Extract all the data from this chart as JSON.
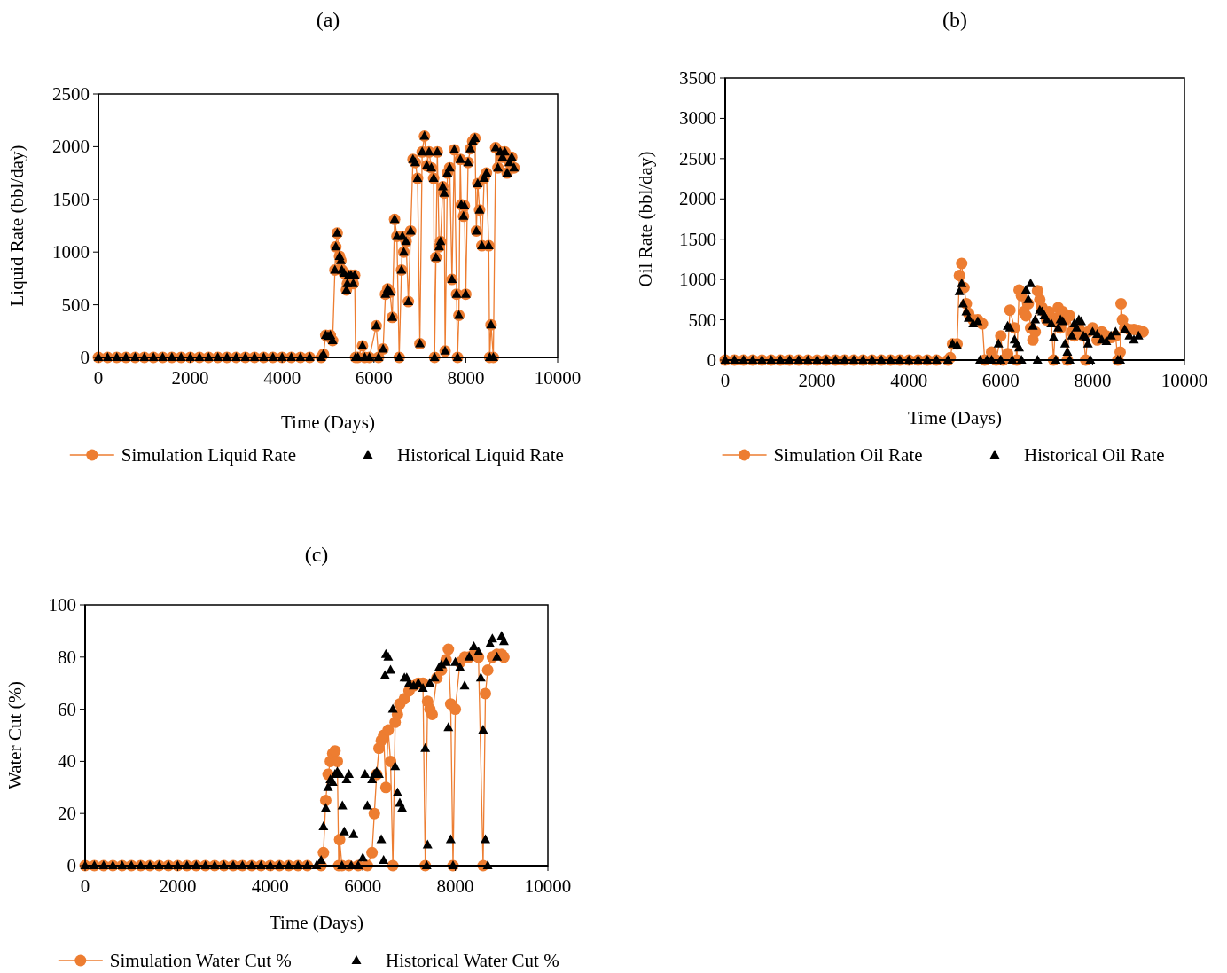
{
  "chart_data": [
    {
      "type": "line",
      "title": "(a)",
      "xlabel": "Time (Days)",
      "ylabel": "Liquid Rate (bbl/day)",
      "xlim": [
        0,
        10000
      ],
      "xticks": [
        0,
        2000,
        4000,
        6000,
        8000,
        10000
      ],
      "ylim": [
        0,
        2500
      ],
      "yticks": [
        0,
        500,
        1000,
        1500,
        2000,
        2500
      ],
      "legend": "bottom",
      "grid": false,
      "series": [
        {
          "name": "Simulation Liquid Rate",
          "type": "line",
          "marker": "circle",
          "color": "#ed7d31",
          "x": [
            0,
            200,
            400,
            600,
            800,
            1000,
            1200,
            1400,
            1600,
            1800,
            2000,
            2200,
            2400,
            2600,
            2800,
            3000,
            3200,
            3400,
            3600,
            3800,
            4000,
            4200,
            4400,
            4600,
            4850,
            4900,
            4950,
            5000,
            5050,
            5100,
            5150,
            5170,
            5200,
            5250,
            5280,
            5300,
            5350,
            5400,
            5420,
            5450,
            5500,
            5550,
            5580,
            5600,
            5650,
            5750,
            5800,
            5900,
            6050,
            6100,
            6200,
            6250,
            6300,
            6350,
            6400,
            6450,
            6500,
            6550,
            6600,
            6620,
            6650,
            6700,
            6750,
            6800,
            6850,
            6900,
            6950,
            7000,
            7050,
            7100,
            7150,
            7200,
            7250,
            7300,
            7320,
            7350,
            7380,
            7420,
            7450,
            7500,
            7530,
            7550,
            7600,
            7650,
            7700,
            7750,
            7800,
            7820,
            7850,
            7880,
            7900,
            7950,
            7970,
            8000,
            8050,
            8100,
            8150,
            8200,
            8230,
            8260,
            8300,
            8350,
            8400,
            8450,
            8500,
            8520,
            8550,
            8600,
            8650,
            8700,
            8750,
            8800,
            8850,
            8900,
            8950,
            9000,
            9050
          ],
          "values": [
            0,
            0,
            0,
            0,
            0,
            0,
            0,
            0,
            0,
            0,
            0,
            0,
            0,
            0,
            0,
            0,
            0,
            0,
            0,
            0,
            0,
            0,
            0,
            0,
            0,
            30,
            210,
            200,
            210,
            160,
            830,
            1050,
            1180,
            960,
            920,
            830,
            800,
            640,
            700,
            780,
            780,
            700,
            780,
            0,
            0,
            110,
            0,
            0,
            300,
            0,
            80,
            600,
            650,
            620,
            380,
            1310,
            1150,
            0,
            830,
            1150,
            1000,
            1100,
            530,
            1200,
            1880,
            1850,
            1700,
            130,
            1950,
            2100,
            1820,
            1950,
            1800,
            1700,
            0,
            950,
            1950,
            1050,
            1100,
            1620,
            1560,
            60,
            1750,
            1800,
            740,
            1970,
            600,
            0,
            400,
            1880,
            1450,
            1340,
            1440,
            600,
            1850,
            1980,
            2050,
            2080,
            1200,
            1650,
            1400,
            1060,
            1700,
            1750,
            1060,
            0,
            310,
            0,
            1990,
            1800,
            1950,
            1900,
            1950,
            1750,
            1850,
            1900,
            1800
          ]
        },
        {
          "name": "Historical Liquid Rate",
          "type": "scatter",
          "marker": "triangle",
          "color": "#000000",
          "x": [
            0,
            200,
            400,
            600,
            800,
            1000,
            1200,
            1400,
            1600,
            1800,
            2000,
            2200,
            2400,
            2600,
            2800,
            3000,
            3200,
            3400,
            3600,
            3800,
            4000,
            4200,
            4400,
            4600,
            4850,
            4900,
            4950,
            5000,
            5050,
            5100,
            5150,
            5170,
            5200,
            5250,
            5280,
            5300,
            5350,
            5400,
            5420,
            5450,
            5500,
            5550,
            5580,
            5600,
            5650,
            5750,
            5800,
            5900,
            6050,
            6100,
            6200,
            6250,
            6300,
            6350,
            6400,
            6450,
            6500,
            6550,
            6600,
            6620,
            6650,
            6700,
            6750,
            6800,
            6850,
            6900,
            6950,
            7000,
            7050,
            7100,
            7150,
            7200,
            7250,
            7300,
            7320,
            7350,
            7380,
            7420,
            7450,
            7500,
            7530,
            7550,
            7600,
            7650,
            7700,
            7750,
            7800,
            7820,
            7850,
            7880,
            7900,
            7950,
            7970,
            8000,
            8050,
            8100,
            8150,
            8200,
            8230,
            8260,
            8300,
            8350,
            8400,
            8450,
            8500,
            8520,
            8550,
            8600,
            8650,
            8700,
            8750,
            8800,
            8850,
            8900,
            8950,
            9000,
            9050
          ],
          "values": [
            0,
            0,
            0,
            0,
            0,
            0,
            0,
            0,
            0,
            0,
            0,
            0,
            0,
            0,
            0,
            0,
            0,
            0,
            0,
            0,
            0,
            0,
            0,
            0,
            0,
            30,
            210,
            200,
            210,
            160,
            830,
            1050,
            1180,
            960,
            920,
            830,
            800,
            640,
            700,
            780,
            780,
            700,
            780,
            0,
            0,
            110,
            0,
            0,
            300,
            0,
            80,
            600,
            650,
            620,
            380,
            1310,
            1150,
            0,
            830,
            1150,
            1000,
            1100,
            530,
            1200,
            1880,
            1850,
            1700,
            130,
            1950,
            2100,
            1820,
            1950,
            1800,
            1700,
            0,
            950,
            1950,
            1050,
            1100,
            1620,
            1560,
            60,
            1750,
            1800,
            740,
            1970,
            600,
            0,
            400,
            1880,
            1450,
            1340,
            1440,
            600,
            1850,
            1980,
            2050,
            2080,
            1200,
            1650,
            1400,
            1060,
            1700,
            1750,
            1060,
            0,
            310,
            0,
            1990,
            1800,
            1950,
            1900,
            1950,
            1750,
            1850,
            1900,
            1800
          ]
        }
      ]
    },
    {
      "type": "line",
      "title": "(b)",
      "xlabel": "Time (Days)",
      "ylabel": "Oil Rate (bbl/day)",
      "xlim": [
        0,
        10000
      ],
      "xticks": [
        0,
        2000,
        4000,
        6000,
        8000,
        10000
      ],
      "ylim": [
        0,
        3500
      ],
      "yticks": [
        0,
        500,
        1000,
        1500,
        2000,
        2500,
        3000,
        3500
      ],
      "legend": "bottom",
      "grid": false,
      "series": [
        {
          "name": "Simulation Oil Rate",
          "type": "line",
          "marker": "circle",
          "color": "#ed7d31",
          "x": [
            0,
            200,
            400,
            600,
            800,
            1000,
            1200,
            1400,
            1600,
            1800,
            2000,
            2200,
            2400,
            2600,
            2800,
            3000,
            3200,
            3400,
            3600,
            3800,
            4000,
            4200,
            4400,
            4600,
            4850,
            4900,
            4950,
            5050,
            5100,
            5150,
            5200,
            5250,
            5300,
            5400,
            5500,
            5600,
            5650,
            5800,
            5900,
            6000,
            6050,
            6150,
            6200,
            6300,
            6350,
            6400,
            6450,
            6500,
            6550,
            6600,
            6650,
            6700,
            6750,
            6800,
            6850,
            6900,
            6950,
            7000,
            7050,
            7100,
            7150,
            7200,
            7250,
            7300,
            7350,
            7400,
            7450,
            7500,
            7550,
            7600,
            7700,
            7800,
            7850,
            7900,
            8000,
            8100,
            8200,
            8300,
            8400,
            8500,
            8550,
            8600,
            8620,
            8650,
            8700,
            8800,
            8900,
            9000,
            9100
          ],
          "values": [
            0,
            0,
            0,
            0,
            0,
            0,
            0,
            0,
            0,
            0,
            0,
            0,
            0,
            0,
            0,
            0,
            0,
            0,
            0,
            0,
            0,
            0,
            0,
            0,
            0,
            30,
            200,
            200,
            1050,
            1200,
            900,
            700,
            580,
            500,
            500,
            450,
            0,
            100,
            0,
            300,
            0,
            80,
            620,
            400,
            0,
            870,
            800,
            600,
            550,
            700,
            400,
            250,
            350,
            860,
            750,
            650,
            600,
            500,
            600,
            480,
            0,
            520,
            650,
            400,
            600,
            500,
            0,
            550,
            350,
            300,
            400,
            300,
            0,
            350,
            400,
            250,
            350,
            300,
            280,
            300,
            0,
            100,
            700,
            500,
            400,
            380,
            380,
            370,
            350
          ]
        },
        {
          "name": "Historical Oil Rate",
          "type": "scatter",
          "marker": "triangle",
          "color": "#000000",
          "x": [
            0,
            200,
            400,
            600,
            800,
            1000,
            1200,
            1400,
            1600,
            1800,
            2000,
            2200,
            2400,
            2600,
            2800,
            3000,
            3200,
            3400,
            3600,
            3800,
            4000,
            4200,
            4400,
            4600,
            4850,
            4950,
            5050,
            5100,
            5150,
            5180,
            5250,
            5300,
            5400,
            5500,
            5550,
            5700,
            5800,
            5950,
            6000,
            6150,
            6200,
            6250,
            6300,
            6350,
            6400,
            6450,
            6550,
            6600,
            6650,
            6700,
            6750,
            6800,
            6850,
            6900,
            6950,
            7000,
            7100,
            7150,
            7200,
            7250,
            7300,
            7350,
            7400,
            7450,
            7500,
            7550,
            7600,
            7650,
            7700,
            7750,
            7800,
            7850,
            7900,
            7950,
            8000,
            8100,
            8200,
            8300,
            8400,
            8500,
            8550,
            8600,
            8700,
            8800,
            8900,
            9000
          ],
          "values": [
            0,
            0,
            0,
            0,
            0,
            0,
            0,
            0,
            0,
            0,
            0,
            0,
            0,
            0,
            0,
            0,
            0,
            0,
            0,
            0,
            0,
            0,
            0,
            0,
            0,
            200,
            180,
            850,
            950,
            700,
            600,
            520,
            450,
            480,
            0,
            0,
            0,
            200,
            0,
            420,
            400,
            0,
            250,
            200,
            150,
            0,
            870,
            750,
            950,
            420,
            500,
            0,
            620,
            600,
            550,
            500,
            450,
            280,
            0,
            400,
            500,
            480,
            200,
            100,
            0,
            300,
            450,
            400,
            500,
            480,
            300,
            280,
            200,
            0,
            350,
            320,
            250,
            230,
            300,
            350,
            0,
            0,
            380,
            300,
            250,
            300
          ]
        }
      ]
    },
    {
      "type": "line",
      "title": "(c)",
      "xlabel": "Time (Days)",
      "ylabel": "Water Cut (%)",
      "xlim": [
        0,
        10000
      ],
      "xticks": [
        0,
        2000,
        4000,
        6000,
        8000,
        10000
      ],
      "ylim": [
        0,
        100
      ],
      "yticks": [
        0,
        20,
        40,
        60,
        80,
        100
      ],
      "legend": "bottom",
      "grid": false,
      "series": [
        {
          "name": "Simulation Water Cut %",
          "type": "line",
          "marker": "circle",
          "color": "#ed7d31",
          "x": [
            0,
            200,
            400,
            600,
            800,
            1000,
            1200,
            1400,
            1600,
            1800,
            2000,
            2200,
            2400,
            2600,
            2800,
            3000,
            3200,
            3400,
            3600,
            3800,
            4000,
            4200,
            4400,
            4600,
            4800,
            5100,
            5150,
            5200,
            5250,
            5300,
            5350,
            5400,
            5450,
            5480,
            5500,
            5550,
            5700,
            5900,
            6100,
            6200,
            6250,
            6300,
            6350,
            6400,
            6450,
            6500,
            6550,
            6600,
            6650,
            6700,
            6750,
            6800,
            6900,
            7000,
            7100,
            7200,
            7300,
            7350,
            7400,
            7450,
            7500,
            7600,
            7700,
            7800,
            7850,
            7900,
            7950,
            8000,
            8100,
            8200,
            8300,
            8400,
            8500,
            8600,
            8650,
            8700,
            8800,
            8900,
            9000,
            9050
          ],
          "values": [
            0,
            0,
            0,
            0,
            0,
            0,
            0,
            0,
            0,
            0,
            0,
            0,
            0,
            0,
            0,
            0,
            0,
            0,
            0,
            0,
            0,
            0,
            0,
            0,
            0,
            0,
            5,
            25,
            35,
            40,
            43,
            44,
            40,
            0,
            10,
            0,
            0,
            0,
            0,
            5,
            20,
            35,
            45,
            48,
            50,
            30,
            52,
            40,
            0,
            55,
            58,
            62,
            64,
            67,
            69,
            70,
            70,
            0,
            63,
            60,
            58,
            72,
            75,
            79,
            83,
            62,
            0,
            60,
            78,
            80,
            80,
            81,
            80,
            0,
            66,
            75,
            80,
            81,
            81,
            80
          ]
        },
        {
          "name": "Historical Water Cut %",
          "type": "scatter",
          "marker": "triangle",
          "color": "#000000",
          "x": [
            0,
            200,
            400,
            600,
            800,
            1000,
            1200,
            1400,
            1600,
            1800,
            2000,
            2200,
            2400,
            2600,
            2800,
            3000,
            3200,
            3400,
            3600,
            3800,
            4000,
            4200,
            4400,
            4600,
            4800,
            5000,
            5100,
            5150,
            5200,
            5250,
            5300,
            5350,
            5400,
            5450,
            5500,
            5550,
            5560,
            5600,
            5650,
            5700,
            5750,
            5800,
            5900,
            6000,
            6050,
            6100,
            6200,
            6250,
            6300,
            6350,
            6400,
            6450,
            6480,
            6500,
            6550,
            6600,
            6650,
            6700,
            6750,
            6800,
            6850,
            6900,
            6950,
            7000,
            7100,
            7200,
            7300,
            7350,
            7380,
            7400,
            7450,
            7550,
            7650,
            7700,
            7800,
            7850,
            7900,
            7950,
            8000,
            8100,
            8200,
            8300,
            8400,
            8500,
            8550,
            8600,
            8650,
            8700,
            8750,
            8800,
            8900,
            9000,
            9050
          ],
          "values": [
            0,
            0,
            0,
            0,
            0,
            0,
            0,
            0,
            0,
            0,
            0,
            0,
            0,
            0,
            0,
            0,
            0,
            0,
            0,
            0,
            0,
            0,
            0,
            0,
            0,
            0,
            2,
            15,
            22,
            30,
            33,
            32,
            35,
            36,
            35,
            0,
            23,
            13,
            33,
            35,
            0,
            12,
            0,
            3,
            35,
            23,
            33,
            35,
            36,
            35,
            10,
            2,
            73,
            81,
            80,
            75,
            60,
            38,
            28,
            24,
            22,
            72,
            72,
            70,
            69,
            70,
            68,
            45,
            0,
            8,
            70,
            72,
            76,
            77,
            78,
            53,
            10,
            0,
            78,
            76,
            69,
            80,
            84,
            82,
            72,
            52,
            10,
            0,
            85,
            87,
            80,
            88,
            86
          ]
        }
      ]
    }
  ]
}
